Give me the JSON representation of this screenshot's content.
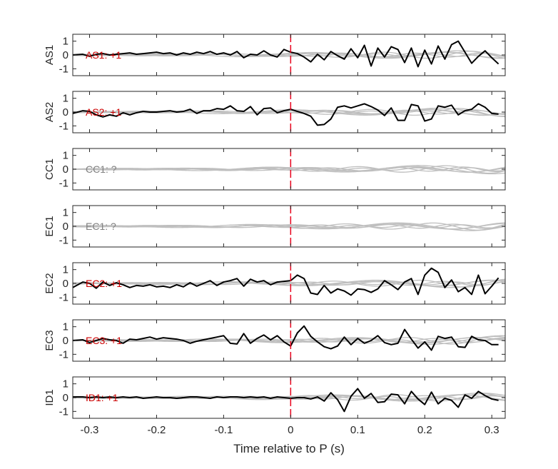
{
  "colors": {
    "axis": "#262626",
    "trace_main": "#000000",
    "trace_bg": "#bfbfbf",
    "marker": "#e8001c",
    "annot_known": "#cc0000",
    "annot_unknown": "#808080"
  },
  "chart_data": {
    "type": "line",
    "xlabel": "Time relative to P (s)",
    "xlim": [
      -0.325,
      0.32
    ],
    "xticks": [
      -0.3,
      -0.2,
      -0.1,
      0,
      0.1,
      0.2,
      0.3
    ],
    "xtick_labels": [
      "-0.3",
      "-0.2",
      "-0.1",
      "0",
      "0.1",
      "0.2",
      "0.3"
    ],
    "ylim": [
      -1.5,
      1.5
    ],
    "yticks": [
      1,
      0,
      -1
    ],
    "ytick_labels": [
      "1",
      "0",
      "-1"
    ],
    "p_marker_time": 0,
    "panels": [
      {
        "station": "AS1",
        "annotation": "AS1: +1",
        "annotation_status": "known",
        "main": {
          "x": [
            -0.325,
            -0.31,
            -0.3,
            -0.29,
            -0.28,
            -0.27,
            -0.26,
            -0.25,
            -0.24,
            -0.23,
            -0.22,
            -0.21,
            -0.2,
            -0.19,
            -0.18,
            -0.17,
            -0.16,
            -0.15,
            -0.14,
            -0.13,
            -0.12,
            -0.11,
            -0.1,
            -0.09,
            -0.08,
            -0.07,
            -0.06,
            -0.05,
            -0.04,
            -0.03,
            -0.02,
            -0.01,
            0,
            0.01,
            0.02,
            0.03,
            0.04,
            0.05,
            0.06,
            0.07,
            0.08,
            0.09,
            0.1,
            0.11,
            0.12,
            0.13,
            0.14,
            0.15,
            0.16,
            0.17,
            0.18,
            0.19,
            0.2,
            0.21,
            0.22,
            0.23,
            0.24,
            0.25,
            0.26,
            0.27,
            0.28,
            0.29,
            0.3,
            0.31
          ],
          "y": [
            0,
            0.05,
            -0.1,
            0.05,
            0.1,
            0,
            0.05,
            0.1,
            0.15,
            0.05,
            0.1,
            0.15,
            0.2,
            0.1,
            0.15,
            0,
            0.15,
            0.05,
            0.2,
            0.1,
            0.25,
            0.05,
            0.15,
            0,
            0.25,
            -0.2,
            0.05,
            0,
            0.3,
            0,
            -0.15,
            0.4,
            0.2,
            0.1,
            -0.15,
            -0.5,
            0.05,
            -0.35,
            0.25,
            -0.05,
            -0.3,
            0.45,
            -0.2,
            0.7,
            -0.8,
            0.5,
            -0.15,
            0.6,
            0.4,
            -0.55,
            0.5,
            -0.85,
            0.35,
            -0.65,
            0.65,
            -0.3,
            0.75,
            1.0,
            0.2,
            -0.6,
            -0.1,
            0.3,
            -0.2,
            -0.65
          ]
        }
      },
      {
        "station": "AS2",
        "annotation": "AS2: +1",
        "annotation_status": "known",
        "main": {
          "x": [
            -0.325,
            -0.31,
            -0.3,
            -0.29,
            -0.28,
            -0.27,
            -0.26,
            -0.25,
            -0.24,
            -0.23,
            -0.22,
            -0.21,
            -0.2,
            -0.19,
            -0.18,
            -0.17,
            -0.16,
            -0.15,
            -0.14,
            -0.13,
            -0.12,
            -0.11,
            -0.1,
            -0.09,
            -0.08,
            -0.07,
            -0.06,
            -0.05,
            -0.04,
            -0.03,
            -0.02,
            -0.01,
            0,
            0.01,
            0.02,
            0.03,
            0.04,
            0.05,
            0.06,
            0.07,
            0.08,
            0.09,
            0.1,
            0.11,
            0.12,
            0.13,
            0.14,
            0.15,
            0.16,
            0.17,
            0.18,
            0.19,
            0.2,
            0.21,
            0.22,
            0.23,
            0.24,
            0.25,
            0.26,
            0.27,
            0.28,
            0.29,
            0.3,
            0.31
          ],
          "y": [
            -0.1,
            0.1,
            0.05,
            -0.2,
            -0.35,
            -0.2,
            -0.3,
            -0.05,
            -0.2,
            -0.05,
            0.05,
            0,
            0,
            0.05,
            0.1,
            0,
            0.05,
            0.2,
            -0.1,
            0.1,
            0.1,
            0.25,
            0.2,
            0.45,
            0.1,
            0.05,
            0.4,
            -0.2,
            0.25,
            0.3,
            -0.05,
            0.1,
            0.2,
            0.05,
            -0.1,
            -0.3,
            -0.95,
            -0.9,
            -0.5,
            0.35,
            0.45,
            0.3,
            0.45,
            0.6,
            0.4,
            0.15,
            -0.25,
            0.3,
            -0.6,
            -0.6,
            0.55,
            0.45,
            -0.65,
            -0.5,
            0.45,
            0.35,
            0.5,
            -0.2,
            0.1,
            0.2,
            0.6,
            0.35,
            -0.1,
            -0.15
          ]
        }
      },
      {
        "station": "CC1",
        "annotation": "CC1: ?",
        "annotation_status": "unknown",
        "main": null
      },
      {
        "station": "EC1",
        "annotation": "EC1: ?",
        "annotation_status": "unknown",
        "main": null
      },
      {
        "station": "EC2",
        "annotation": "EC2: +1",
        "annotation_status": "known",
        "main": {
          "x": [
            -0.325,
            -0.31,
            -0.3,
            -0.29,
            -0.28,
            -0.27,
            -0.26,
            -0.25,
            -0.24,
            -0.23,
            -0.22,
            -0.21,
            -0.2,
            -0.19,
            -0.18,
            -0.17,
            -0.16,
            -0.15,
            -0.14,
            -0.13,
            -0.12,
            -0.11,
            -0.1,
            -0.09,
            -0.08,
            -0.07,
            -0.06,
            -0.05,
            -0.04,
            -0.03,
            -0.02,
            -0.01,
            0,
            0.01,
            0.02,
            0.03,
            0.04,
            0.05,
            0.06,
            0.07,
            0.08,
            0.09,
            0.1,
            0.11,
            0.12,
            0.13,
            0.14,
            0.15,
            0.16,
            0.17,
            0.18,
            0.19,
            0.2,
            0.21,
            0.22,
            0.23,
            0.24,
            0.25,
            0.26,
            0.27,
            0.28,
            0.29,
            0.3,
            0.31
          ],
          "y": [
            -0.3,
            0.1,
            0,
            -0.35,
            0.1,
            -0.15,
            0.05,
            -0.1,
            -0.3,
            -0.15,
            -0.2,
            -0.1,
            -0.25,
            -0.2,
            -0.3,
            -0.1,
            -0.25,
            0.05,
            -0.2,
            0,
            0.2,
            -0.15,
            0.1,
            0.2,
            0.35,
            -0.2,
            0.3,
            0.1,
            0.2,
            -0.1,
            0.1,
            0.15,
            0.2,
            0.6,
            0.35,
            -0.7,
            -0.8,
            -0.15,
            -0.7,
            -0.4,
            -0.55,
            -0.85,
            -0.4,
            -0.45,
            -0.65,
            -0.4,
            0.2,
            -0.1,
            -0.45,
            0.1,
            0.35,
            -0.8,
            0.6,
            1.1,
            0.8,
            -0.3,
            0.25,
            -0.6,
            -0.3,
            -0.8,
            0.6,
            -0.75,
            -0.2,
            0.4
          ]
        }
      },
      {
        "station": "EC3",
        "annotation": "EC3: +1",
        "annotation_status": "known",
        "main": {
          "x": [
            -0.325,
            -0.31,
            -0.3,
            -0.29,
            -0.28,
            -0.27,
            -0.26,
            -0.25,
            -0.24,
            -0.23,
            -0.22,
            -0.21,
            -0.2,
            -0.19,
            -0.18,
            -0.17,
            -0.16,
            -0.15,
            -0.14,
            -0.13,
            -0.12,
            -0.11,
            -0.1,
            -0.09,
            -0.08,
            -0.07,
            -0.06,
            -0.05,
            -0.04,
            -0.03,
            -0.02,
            -0.01,
            0,
            0.01,
            0.02,
            0.03,
            0.04,
            0.05,
            0.06,
            0.07,
            0.08,
            0.09,
            0.1,
            0.11,
            0.12,
            0.13,
            0.14,
            0.15,
            0.16,
            0.17,
            0.18,
            0.19,
            0.2,
            0.21,
            0.22,
            0.23,
            0.24,
            0.25,
            0.26,
            0.27,
            0.28,
            0.29,
            0.3,
            0.31
          ],
          "y": [
            0,
            0.05,
            -0.15,
            0,
            0.15,
            0.05,
            0,
            -0.2,
            0.1,
            0.05,
            0.15,
            0.25,
            0.1,
            0.2,
            0.15,
            0.1,
            0,
            -0.2,
            -0.05,
            0.05,
            0.15,
            0.25,
            0.35,
            -0.2,
            -0.25,
            0.5,
            -0.2,
            0.15,
            0.4,
            0.05,
            0.35,
            -0.1,
            -0.4,
            0.55,
            1.05,
            0.3,
            -0.1,
            -0.45,
            -0.6,
            -0.4,
            0.25,
            -0.3,
            0.15,
            -0.2,
            0,
            0.35,
            -0.15,
            -0.3,
            -0.2,
            0.8,
            0.1,
            -0.55,
            -0.1,
            -0.7,
            0.3,
            0.15,
            0.25,
            -0.45,
            -0.5,
            0.3,
            0.05,
            0,
            -0.3,
            -0.3
          ]
        }
      },
      {
        "station": "ID1",
        "annotation": "ID1: +1",
        "annotation_status": "known",
        "main": {
          "x": [
            -0.325,
            -0.31,
            -0.3,
            -0.29,
            -0.28,
            -0.27,
            -0.26,
            -0.25,
            -0.24,
            -0.23,
            -0.22,
            -0.21,
            -0.2,
            -0.19,
            -0.18,
            -0.17,
            -0.16,
            -0.15,
            -0.14,
            -0.13,
            -0.12,
            -0.11,
            -0.1,
            -0.09,
            -0.08,
            -0.07,
            -0.06,
            -0.05,
            -0.04,
            -0.03,
            -0.02,
            -0.01,
            0,
            0.01,
            0.02,
            0.03,
            0.04,
            0.05,
            0.06,
            0.07,
            0.08,
            0.09,
            0.1,
            0.11,
            0.12,
            0.13,
            0.14,
            0.15,
            0.16,
            0.17,
            0.18,
            0.19,
            0.2,
            0.21,
            0.22,
            0.23,
            0.24,
            0.25,
            0.26,
            0.27,
            0.28,
            0.29,
            0.3,
            0.31
          ],
          "y": [
            0.05,
            0.05,
            0,
            0.05,
            0,
            0.05,
            0,
            0.05,
            0,
            0.05,
            -0.05,
            0,
            0.05,
            0,
            0,
            -0.05,
            0,
            0.05,
            0.05,
            0,
            -0.05,
            0.05,
            0,
            0.05,
            0.05,
            0,
            0.05,
            0,
            0.05,
            -0.05,
            0.05,
            0,
            -0.05,
            0,
            0,
            -0.1,
            0.05,
            -0.25,
            0.35,
            -0.15,
            -1.0,
            0.1,
            0.65,
            -0.05,
            0.3,
            -0.35,
            -0.3,
            0.25,
            0.2,
            -0.45,
            0.45,
            -0.1,
            -0.5,
            0.4,
            -0.45,
            -0.05,
            -0.2,
            -0.7,
            0.2,
            -0.05,
            0.45,
            0.15,
            -0.1,
            -0.2
          ]
        }
      }
    ],
    "background_traces": [
      {
        "period": 0.18,
        "amp_start": 0.05,
        "amp_end": 0.22,
        "phase": 0.0
      },
      {
        "period": 0.13,
        "amp_start": 0.04,
        "amp_end": 0.3,
        "phase": 1.2
      },
      {
        "period": 0.1,
        "amp_start": 0.03,
        "amp_end": 0.18,
        "phase": 2.5
      },
      {
        "period": 0.22,
        "amp_start": 0.05,
        "amp_end": 0.35,
        "phase": 0.7
      },
      {
        "period": 0.08,
        "amp_start": 0.02,
        "amp_end": 0.12,
        "phase": 3.9
      },
      {
        "period": 0.16,
        "amp_start": 0.03,
        "amp_end": 0.25,
        "phase": 5.1
      }
    ]
  }
}
